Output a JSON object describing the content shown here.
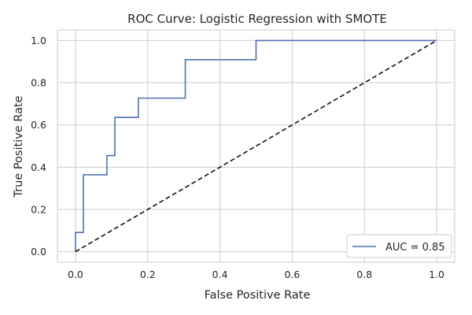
{
  "chart_data": {
    "type": "line",
    "title": "ROC Curve: Logistic Regression with SMOTE",
    "xlabel": "False Positive Rate",
    "ylabel": "True Positive Rate",
    "xlim": [
      -0.05,
      1.05
    ],
    "ylim": [
      -0.05,
      1.05
    ],
    "xticks": [
      0.0,
      0.2,
      0.4,
      0.6,
      0.8,
      1.0
    ],
    "yticks": [
      0.0,
      0.2,
      0.4,
      0.6,
      0.8,
      1.0
    ],
    "xtick_labels": [
      "0.0",
      "0.2",
      "0.4",
      "0.6",
      "0.8",
      "1.0"
    ],
    "ytick_labels": [
      "0.0",
      "0.2",
      "0.4",
      "0.6",
      "0.8",
      "1.0"
    ],
    "grid": true,
    "legend_position": "bottom-right",
    "series": [
      {
        "name": "AUC = 0.85",
        "style": "solid",
        "color": "#4c72b0",
        "x": [
          0.0,
          0.0,
          0.022,
          0.022,
          0.087,
          0.087,
          0.109,
          0.109,
          0.174,
          0.174,
          0.304,
          0.304,
          0.5,
          0.5,
          1.0
        ],
        "y": [
          0.0,
          0.091,
          0.091,
          0.364,
          0.364,
          0.455,
          0.455,
          0.636,
          0.636,
          0.727,
          0.727,
          0.909,
          0.909,
          1.0,
          1.0
        ]
      },
      {
        "name": "",
        "style": "dashed",
        "color": "#111111",
        "x": [
          0.0,
          1.0
        ],
        "y": [
          0.0,
          1.0
        ]
      }
    ]
  }
}
